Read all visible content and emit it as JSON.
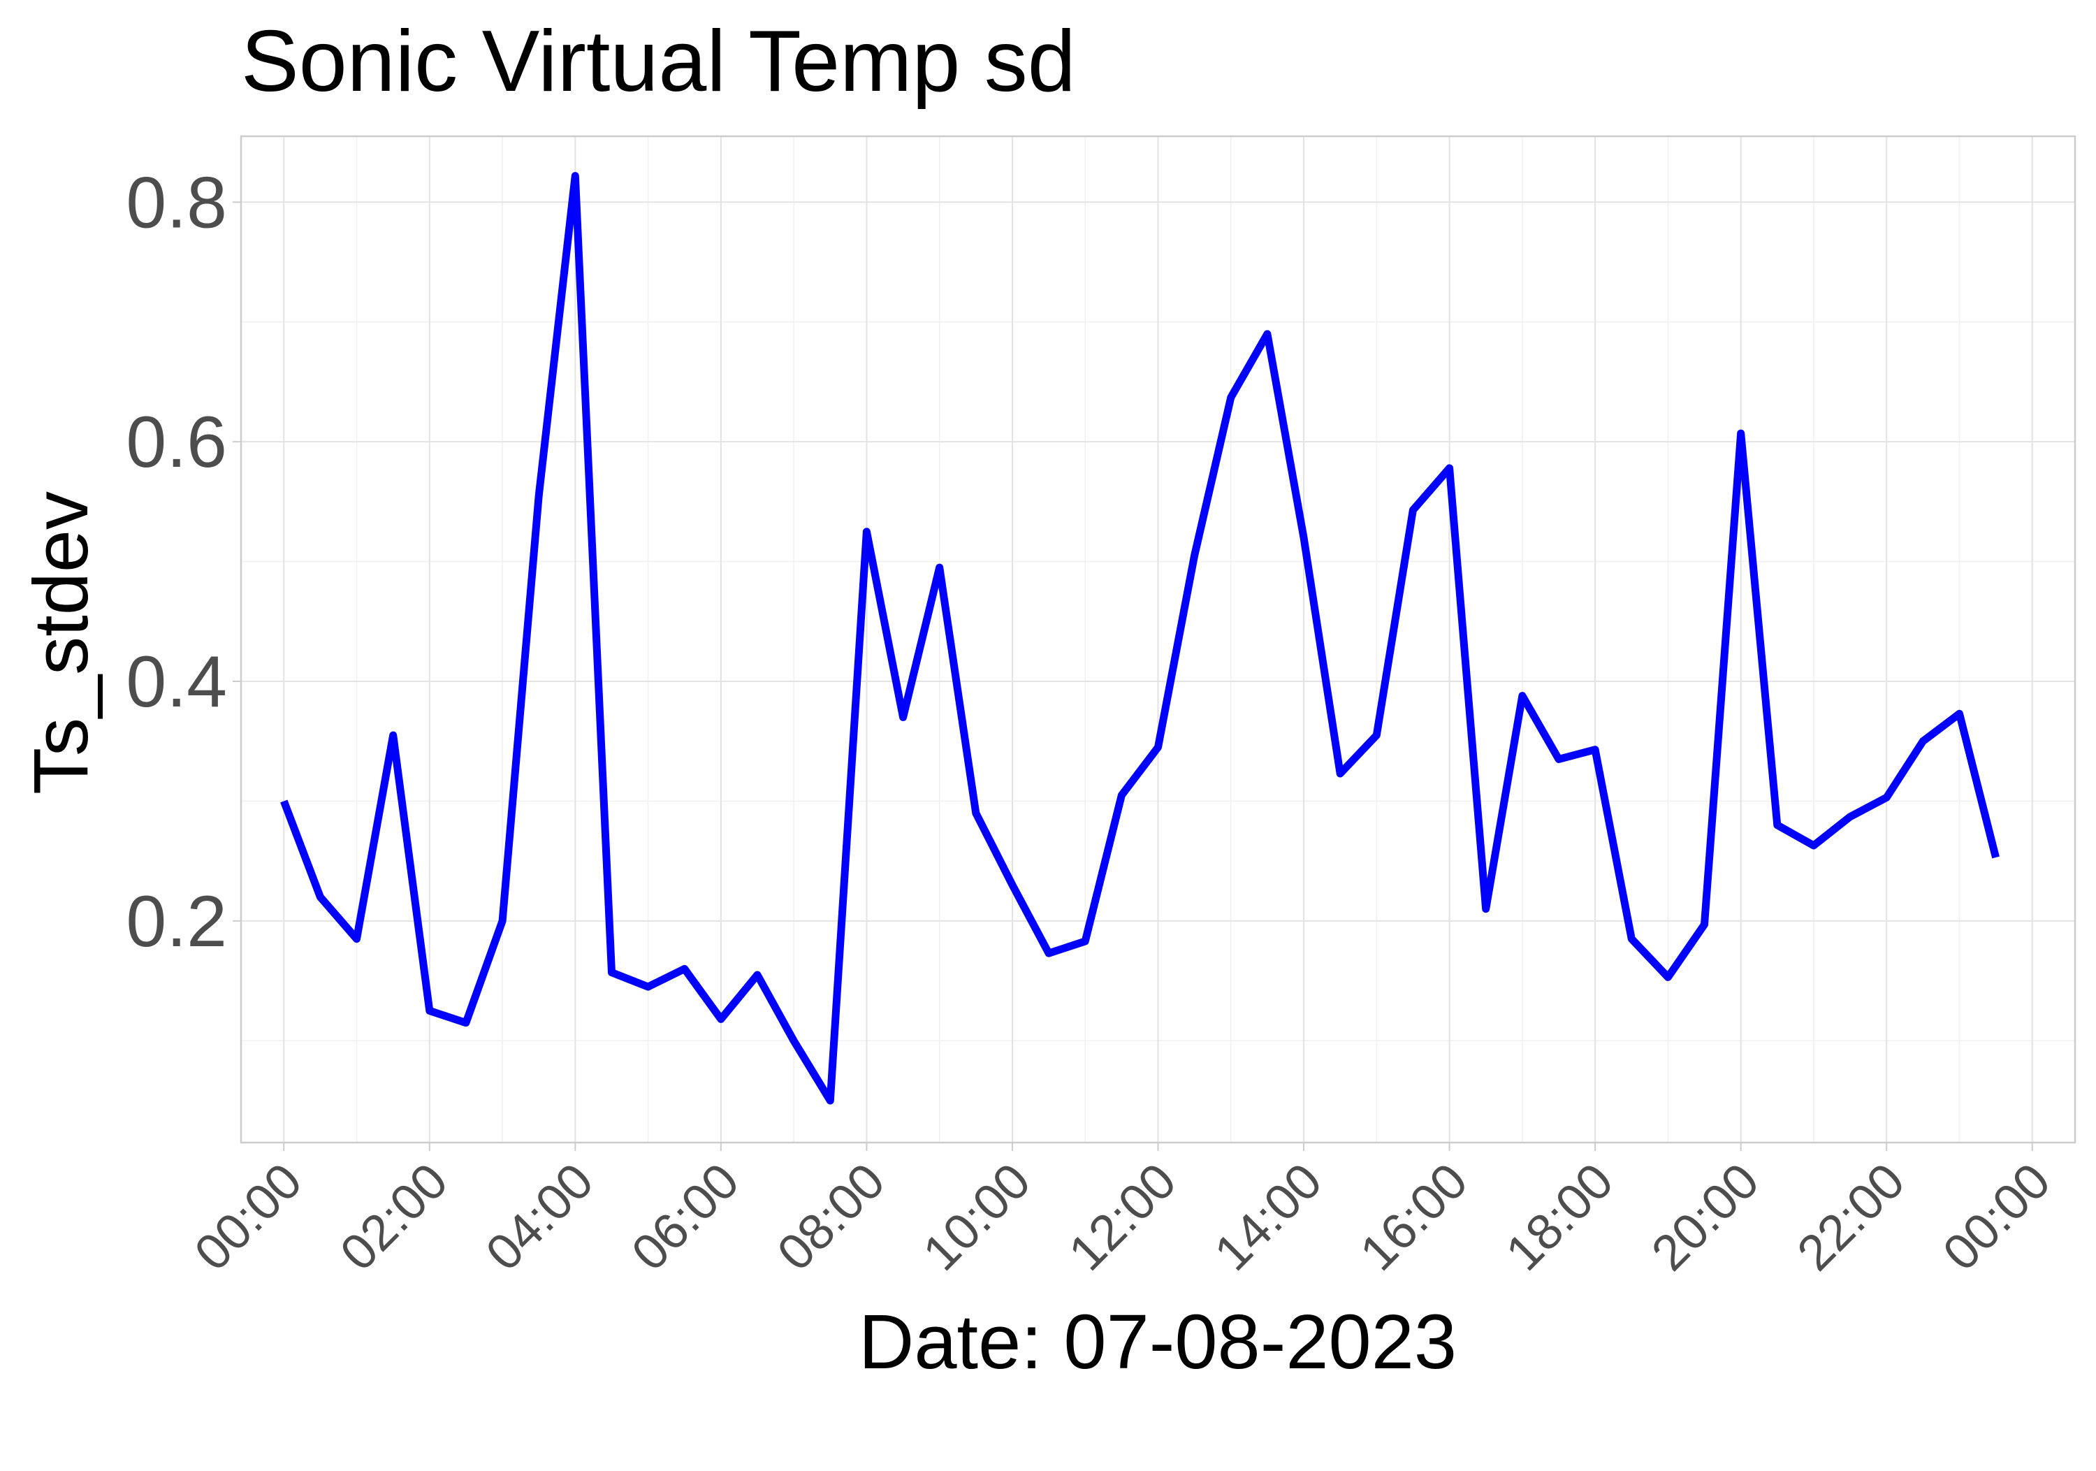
{
  "chart_data": {
    "type": "line",
    "title": "Sonic Virtual Temp sd",
    "xlabel": "Date: 07-08-2023",
    "ylabel": "Ts_stdev",
    "xlim": [
      "2023-07-08T-00:35",
      "2023-07-09T00:35"
    ],
    "ylim": [
      0.015,
      0.855
    ],
    "x_ticks": [
      "00:00",
      "02:00",
      "04:00",
      "06:00",
      "08:00",
      "10:00",
      "12:00",
      "14:00",
      "16:00",
      "18:00",
      "20:00",
      "22:00",
      "00:00"
    ],
    "y_ticks": [
      0.2,
      0.4,
      0.6,
      0.8
    ],
    "y_tick_labels": [
      "0.2",
      "0.4",
      "0.6",
      "0.8"
    ],
    "grid": true,
    "legend": "none",
    "series": [
      {
        "color": "#0000FF",
        "x": [
          "00:00",
          "00:30",
          "01:00",
          "01:30",
          "02:00",
          "02:30",
          "03:00",
          "03:30",
          "04:00",
          "04:30",
          "05:00",
          "05:30",
          "06:00",
          "06:30",
          "07:00",
          "07:30",
          "08:00",
          "08:30",
          "09:00",
          "09:30",
          "10:00",
          "10:30",
          "11:00",
          "11:30",
          "12:00",
          "12:30",
          "13:00",
          "13:30",
          "14:00",
          "14:30",
          "15:00",
          "15:30",
          "16:00",
          "16:30",
          "17:00",
          "17:30",
          "18:00",
          "18:30",
          "19:00",
          "19:30",
          "20:00",
          "20:30",
          "21:00",
          "21:30",
          "22:00",
          "22:30",
          "23:00",
          "23:30"
        ],
        "y": [
          0.3,
          0.22,
          0.185,
          0.355,
          0.125,
          0.115,
          0.2,
          0.555,
          0.822,
          0.157,
          0.145,
          0.16,
          0.118,
          0.155,
          0.1,
          0.05,
          0.525,
          0.37,
          0.495,
          0.29,
          0.23,
          0.173,
          0.183,
          0.305,
          0.345,
          0.505,
          0.637,
          0.69,
          0.52,
          0.323,
          0.355,
          0.543,
          0.578,
          0.21,
          0.388,
          0.335,
          0.343,
          0.185,
          0.153,
          0.197,
          0.607,
          0.28,
          0.263,
          0.287,
          0.303,
          0.35,
          0.373,
          0.253
        ]
      }
    ]
  }
}
